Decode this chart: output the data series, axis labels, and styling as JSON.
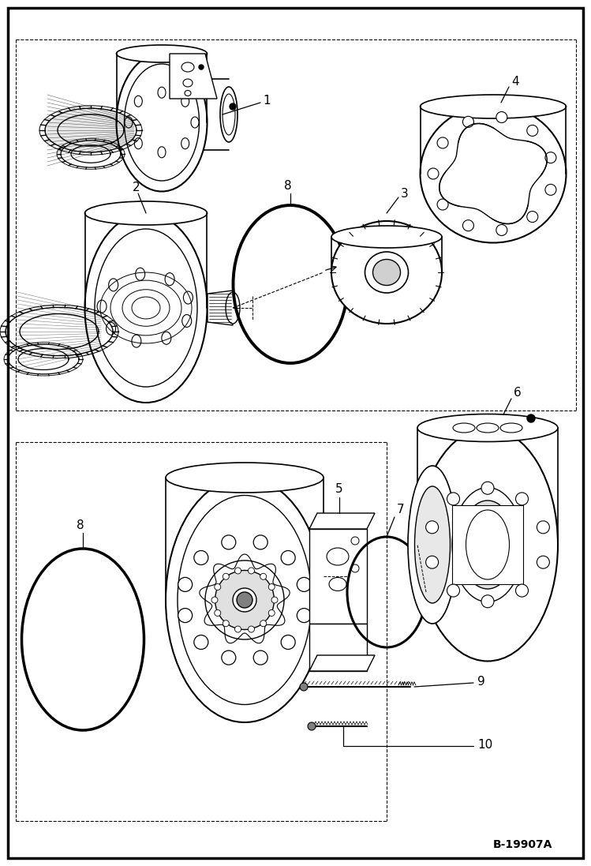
{
  "bg": "#ffffff",
  "lc": "#000000",
  "figure_id": "B-19907A",
  "fig_w": 7.49,
  "fig_h": 10.97
}
